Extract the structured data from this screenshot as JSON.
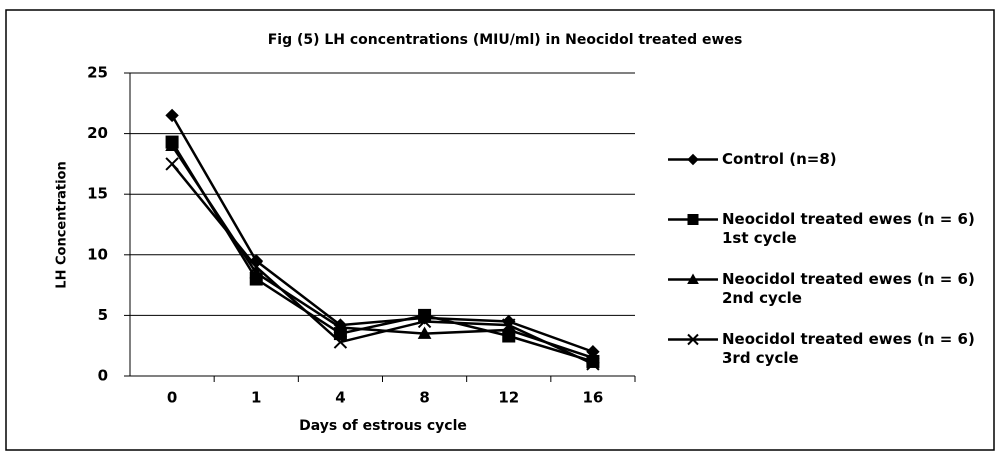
{
  "chart_data": {
    "type": "line",
    "title": "Fig (5) LH concentrations (MIU/ml) in Neocidol treated ewes",
    "x_label": "Days of estrous cycle",
    "y_label": "LH Concentration",
    "categories": [
      "0",
      "1",
      "4",
      "8",
      "12",
      "16"
    ],
    "series": [
      {
        "name": "Control (n=8)",
        "color": "#000000",
        "marker": "diamond",
        "values": [
          21.5,
          9.5,
          4.2,
          4.8,
          4.5,
          2.0
        ]
      },
      {
        "name": "Neocidol treated ewes (n = 6) 1st cycle",
        "color": "#000000",
        "marker": "square",
        "values": [
          19.3,
          8.0,
          3.5,
          5.0,
          3.3,
          1.2
        ]
      },
      {
        "name": "Neocidol treated ewes (n = 6) 2nd cycle",
        "color": "#000000",
        "marker": "triangle",
        "values": [
          19.0,
          8.5,
          4.0,
          3.5,
          3.8,
          1.5
        ]
      },
      {
        "name": "Neocidol treated ewes (n = 6) 3rd cycle",
        "color": "#000000",
        "marker": "x",
        "values": [
          17.5,
          9.0,
          2.8,
          4.5,
          4.2,
          1.0
        ]
      }
    ],
    "ylim": [
      0,
      25
    ],
    "yticks": [
      0,
      5,
      10,
      15,
      20,
      25
    ],
    "grid": true,
    "legend": "right"
  }
}
